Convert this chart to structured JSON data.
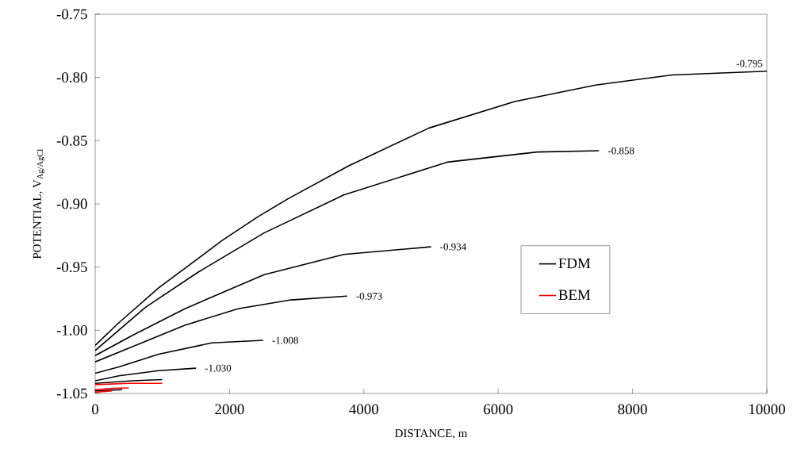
{
  "chart_data": {
    "type": "line",
    "xlabel": "DISTANCE, m",
    "ylabel": "POTENTIAL, V$_{Ag/AgCl}$",
    "xlim": [
      0,
      10000
    ],
    "ylim": [
      -1.05,
      -0.75
    ],
    "xticks": [
      0,
      2000,
      4000,
      6000,
      8000,
      10000
    ],
    "yticks": [
      {
        "value": -1.05,
        "label": "-1.05"
      },
      {
        "value": -1.0,
        "label": "-1.00"
      },
      {
        "value": -0.95,
        "label": "-0.95"
      },
      {
        "value": -0.9,
        "label": "-0.90"
      },
      {
        "value": -0.85,
        "label": "-0.85"
      },
      {
        "value": -0.8,
        "label": "-0.80"
      },
      {
        "value": -0.75,
        "label": "-0.75"
      }
    ],
    "grid": false,
    "legend": "right",
    "marker": "none",
    "line_style": "solid",
    "series": [
      {
        "name": "FDM",
        "color": "#000000",
        "x": [
          0,
          354,
          945,
          1890,
          2430,
          2870,
          3770,
          4970,
          6245,
          7450,
          8590,
          10000
        ],
        "values": [
          -1.012,
          -0.994,
          -0.9665,
          -0.929,
          -0.91,
          -0.896,
          -0.87,
          -0.84,
          -0.819,
          -0.806,
          -0.798,
          -0.795
        ]
      },
      {
        "color": "#000000",
        "x": [
          0,
          745,
          1535,
          2515,
          3700,
          5240,
          6580,
          7500
        ],
        "values": [
          -1.016,
          -0.982,
          -0.954,
          -0.923,
          -0.893,
          -0.867,
          -0.859,
          -0.858
        ]
      },
      {
        "color": "#000000",
        "x": [
          0,
          555,
          1335,
          2515,
          3700,
          5000
        ],
        "values": [
          -1.02,
          -1.004,
          -0.983,
          -0.956,
          -0.94,
          -0.934
        ]
      },
      {
        "color": "#000000",
        "x": [
          0,
          555,
          1335,
          2125,
          2915,
          3750
        ],
        "values": [
          -1.025,
          -1.013,
          -0.996,
          -0.983,
          -0.976,
          -0.973
        ]
      },
      {
        "color": "#000000",
        "x": [
          0,
          354,
          945,
          1735,
          2500
        ],
        "values": [
          -1.034,
          -1.029,
          -1.019,
          -1.01,
          -1.008
        ]
      },
      {
        "color": "#000000",
        "x": [
          0,
          354,
          945,
          1500
        ],
        "values": [
          -1.04,
          -1.036,
          -1.032,
          -1.03
        ]
      },
      {
        "color": "#000000",
        "x": [
          0,
          555,
          1000
        ],
        "values": [
          -1.042,
          -1.04,
          -1.039
        ]
      },
      {
        "color": "#000000",
        "x": [
          0,
          400
        ],
        "values": [
          -1.048,
          -1.047
        ]
      },
      {
        "name": "BEM",
        "color": "#ff0000",
        "x": [
          0,
          500,
          1000
        ],
        "values": [
          -1.043,
          -1.042,
          -1.042
        ]
      },
      {
        "color": "#ff0000",
        "x": [
          0,
          250,
          500
        ],
        "values": [
          -1.047,
          -1.046,
          -1.0456
        ]
      },
      {
        "color": "#ff0000",
        "x": [
          0,
          250
        ],
        "values": [
          -1.049,
          -1.048
        ]
      }
    ],
    "annotations": [
      {
        "text": "-0.795",
        "x": 10000,
        "y": -0.795
      },
      {
        "text": "-0.858",
        "x": 7500,
        "y": -0.858
      },
      {
        "text": "-0.934",
        "x": 5000,
        "y": -0.934
      },
      {
        "text": "-0.973",
        "x": 3750,
        "y": -0.973
      },
      {
        "text": "-1.008",
        "x": 2500,
        "y": -1.008
      },
      {
        "text": "-1.030",
        "x": 1500,
        "y": -1.03
      }
    ]
  }
}
